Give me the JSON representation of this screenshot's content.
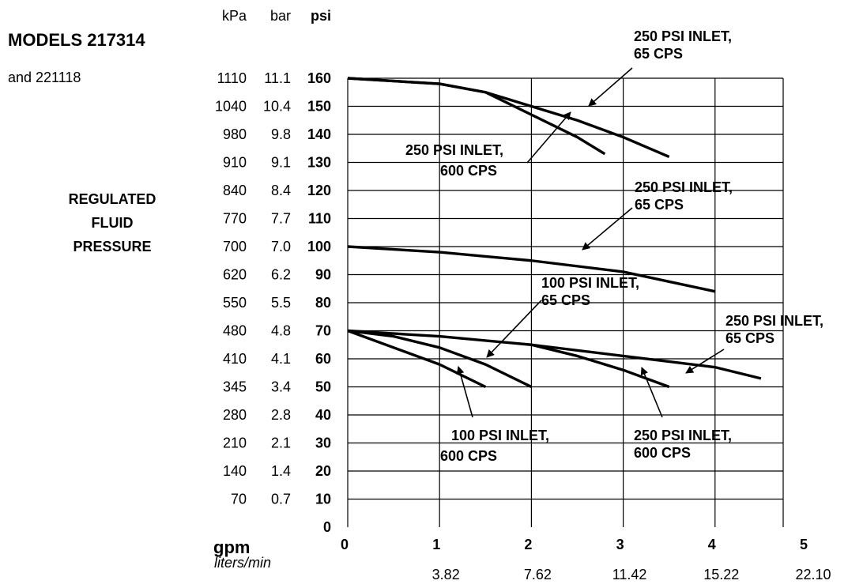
{
  "chart_data": {
    "type": "line",
    "title": "MODELS 217314",
    "title_suffix": "",
    "subtitle": "and 221118",
    "ylabel": [
      "REGULATED",
      "FLUID",
      "PRESSURE"
    ],
    "xlabel": "gpm",
    "xlabel_secondary": "liters/min",
    "y_unit_headers": [
      "kPa",
      "bar",
      "psi"
    ],
    "xlim": [
      0,
      5
    ],
    "ylim": [
      0,
      160
    ],
    "grid": true,
    "x_ticks": [
      "0",
      "1",
      "2",
      "3",
      "4",
      "5"
    ],
    "x_ticks_liters": [
      "3.82",
      "7.62",
      "11.42",
      "15.22",
      "22.10"
    ],
    "y_ticks": [
      {
        "psi": "160",
        "bar": "11.1",
        "kpa": "1110"
      },
      {
        "psi": "150",
        "bar": "10.4",
        "kpa": "1040"
      },
      {
        "psi": "140",
        "bar": "9.8",
        "kpa": "980"
      },
      {
        "psi": "130",
        "bar": "9.1",
        "kpa": "910"
      },
      {
        "psi": "120",
        "bar": "8.4",
        "kpa": "840"
      },
      {
        "psi": "110",
        "bar": "7.7",
        "kpa": "770"
      },
      {
        "psi": "100",
        "bar": "7.0",
        "kpa": "700"
      },
      {
        "psi": "90",
        "bar": "6.2",
        "kpa": "620"
      },
      {
        "psi": "80",
        "bar": "5.5",
        "kpa": "550"
      },
      {
        "psi": "70",
        "bar": "4.8",
        "kpa": "480"
      },
      {
        "psi": "60",
        "bar": "4.1",
        "kpa": "410"
      },
      {
        "psi": "50",
        "bar": "3.4",
        "kpa": "345"
      },
      {
        "psi": "40",
        "bar": "2.8",
        "kpa": "280"
      },
      {
        "psi": "30",
        "bar": "2.1",
        "kpa": "210"
      },
      {
        "psi": "20",
        "bar": "1.4",
        "kpa": "140"
      },
      {
        "psi": "10",
        "bar": "0.7",
        "kpa": "70"
      },
      {
        "psi": "0",
        "bar": "",
        "kpa": ""
      }
    ],
    "series": [
      {
        "x": [
          0,
          1,
          1.5,
          2,
          2.5,
          3,
          3.5
        ],
        "y": [
          160,
          158,
          155,
          150,
          145,
          139,
          132
        ]
      },
      {
        "x": [
          0,
          1,
          1.5,
          2,
          2.5,
          2.8
        ],
        "y": [
          160,
          158,
          155,
          147,
          139,
          133
        ]
      },
      {
        "x": [
          0,
          1,
          2,
          3,
          4
        ],
        "y": [
          100,
          98,
          95,
          91,
          84
        ]
      },
      {
        "x": [
          0,
          1,
          2,
          3,
          4,
          4.5
        ],
        "y": [
          70,
          68,
          65,
          61,
          57,
          53
        ]
      },
      {
        "x": [
          0,
          0.5,
          1,
          1.5,
          2
        ],
        "y": [
          70,
          68,
          64,
          58,
          50
        ]
      },
      {
        "x": [
          0,
          0.5,
          1,
          1.5
        ],
        "y": [
          70,
          64,
          58,
          50
        ]
      },
      {
        "x": [
          2,
          2.5,
          3,
          3.5
        ],
        "y": [
          65,
          61,
          56,
          50
        ]
      }
    ],
    "annotations": [
      {
        "lines": [
          "250 PSI INLET,",
          "65 CPS"
        ]
      },
      {
        "lines": [
          "250 PSI INLET,",
          "600 CPS"
        ]
      },
      {
        "lines": [
          "250 PSI INLET,",
          "65 CPS"
        ]
      },
      {
        "lines": [
          "100 PSI INLET,",
          "65 CPS"
        ]
      },
      {
        "lines": [
          "250 PSI INLET,",
          "65 CPS"
        ]
      },
      {
        "lines": [
          "100 PSI INLET,",
          "600 CPS"
        ]
      },
      {
        "lines": [
          "250 PSI INLET,",
          "600 CPS"
        ]
      }
    ]
  }
}
